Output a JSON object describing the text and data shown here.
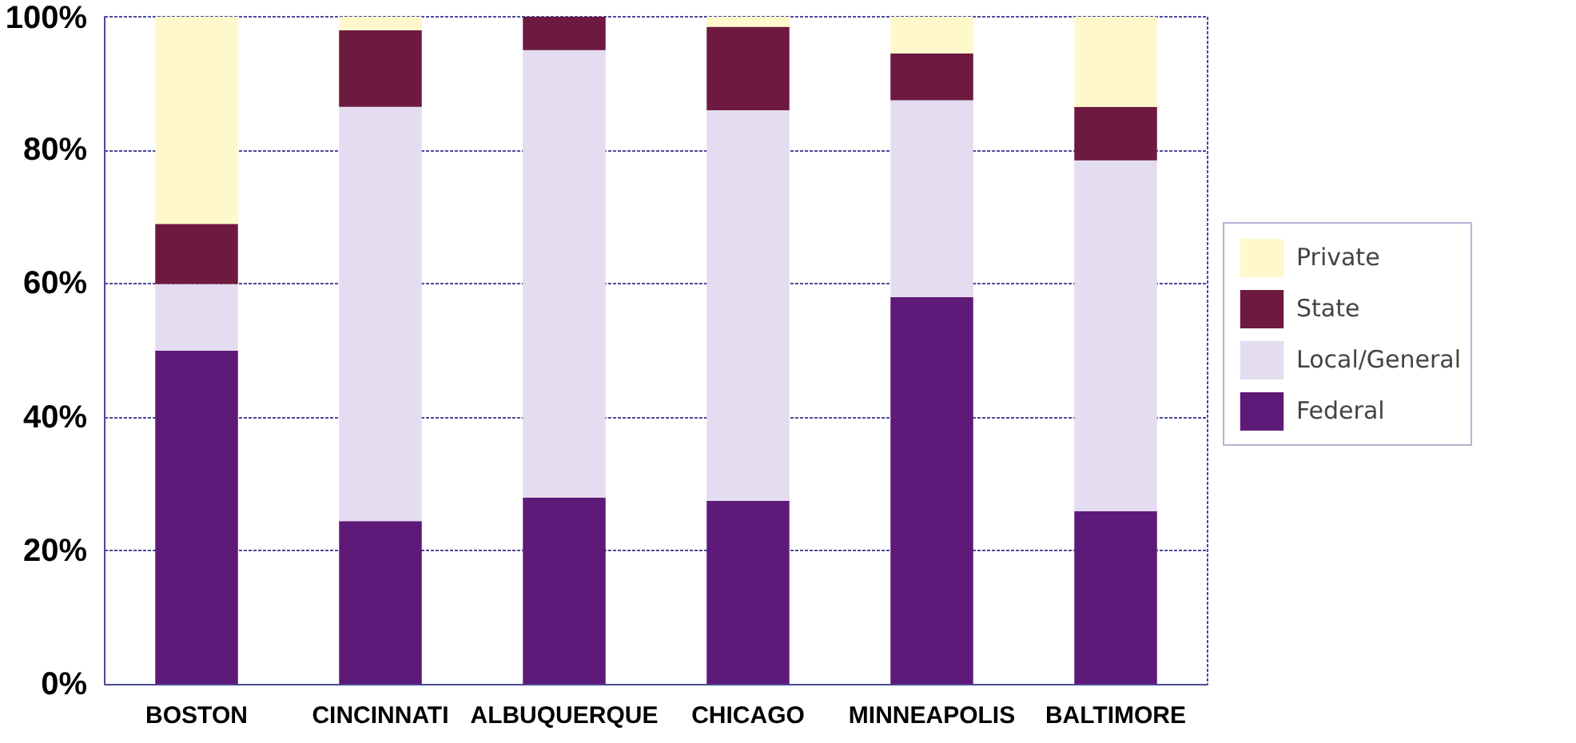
{
  "chart_data": {
    "type": "bar",
    "stacked": true,
    "categories": [
      "BOSTON",
      "CINCINNATI",
      "ALBUQUERQUE",
      "CHICAGO",
      "MINNEAPOLIS",
      "BALTIMORE"
    ],
    "series": [
      {
        "name": "Federal",
        "color": "#5e1a78",
        "values": [
          50,
          24.5,
          28,
          27.5,
          58,
          26
        ]
      },
      {
        "name": "Local/General",
        "color": "#e4dcf0",
        "values": [
          10,
          62,
          67,
          58.5,
          29.5,
          52.5
        ]
      },
      {
        "name": "State",
        "color": "#6e1a40",
        "values": [
          9,
          11.5,
          5,
          12.5,
          7,
          8
        ]
      },
      {
        "name": "Private",
        "color": "#fff8cc",
        "values": [
          31,
          2,
          0,
          1.5,
          5.5,
          13.5
        ]
      }
    ],
    "ylim": [
      0,
      100
    ],
    "yticks": [
      {
        "value": 0,
        "label": "0%"
      },
      {
        "value": 20,
        "label": "20%"
      },
      {
        "value": 40,
        "label": "40%"
      },
      {
        "value": 60,
        "label": "60%"
      },
      {
        "value": 80,
        "label": "80%"
      },
      {
        "value": 100,
        "label": "100%"
      }
    ],
    "grid": "y",
    "legend": "right"
  }
}
